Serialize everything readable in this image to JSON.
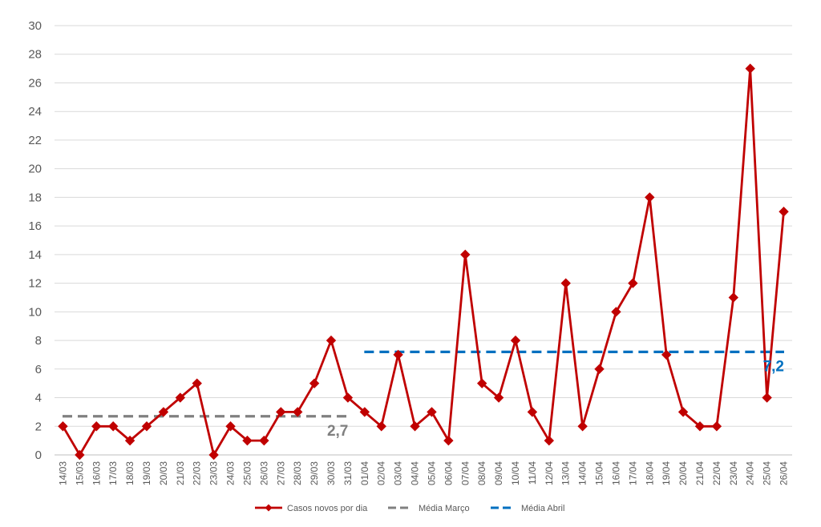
{
  "chart_data": {
    "type": "line",
    "title": "",
    "xlabel": "",
    "ylabel": "",
    "ylim": [
      0,
      30
    ],
    "yticks": [
      0,
      2,
      4,
      6,
      8,
      10,
      12,
      14,
      16,
      18,
      20,
      22,
      24,
      26,
      28,
      30
    ],
    "grid": true,
    "legend_position": "bottom",
    "categories": [
      "14/03",
      "15/03",
      "16/03",
      "17/03",
      "18/03",
      "19/03",
      "20/03",
      "21/03",
      "22/03",
      "23/03",
      "24/03",
      "25/03",
      "26/03",
      "27/03",
      "28/03",
      "29/03",
      "30/03",
      "31/03",
      "01/04",
      "02/04",
      "03/04",
      "04/04",
      "05/04",
      "06/04",
      "07/04",
      "08/04",
      "09/04",
      "10/04",
      "11/04",
      "12/04",
      "13/04",
      "14/04",
      "15/04",
      "16/04",
      "17/04",
      "18/04",
      "19/04",
      "20/04",
      "21/04",
      "22/04",
      "23/04",
      "24/04",
      "25/04",
      "26/04"
    ],
    "series": [
      {
        "name": "Casos novos por dia",
        "color": "#C00000",
        "style": "line-diamond",
        "values": [
          2,
          0,
          2,
          2,
          1,
          2,
          3,
          4,
          5,
          0,
          2,
          1,
          1,
          3,
          3,
          5,
          8,
          4,
          3,
          2,
          7,
          2,
          3,
          1,
          14,
          5,
          4,
          8,
          3,
          1,
          12,
          2,
          6,
          10,
          12,
          18,
          7,
          3,
          2,
          2,
          11,
          27,
          4,
          17
        ]
      },
      {
        "name": "Média Março",
        "color": "#808080",
        "style": "dashed",
        "value": 2.7,
        "label": "2,7",
        "from": "14/03",
        "to": "31/03"
      },
      {
        "name": "Média Abril",
        "color": "#0070C0",
        "style": "dashed",
        "value": 7.2,
        "label": "7,2",
        "from": "01/04",
        "to": "26/04"
      }
    ]
  }
}
